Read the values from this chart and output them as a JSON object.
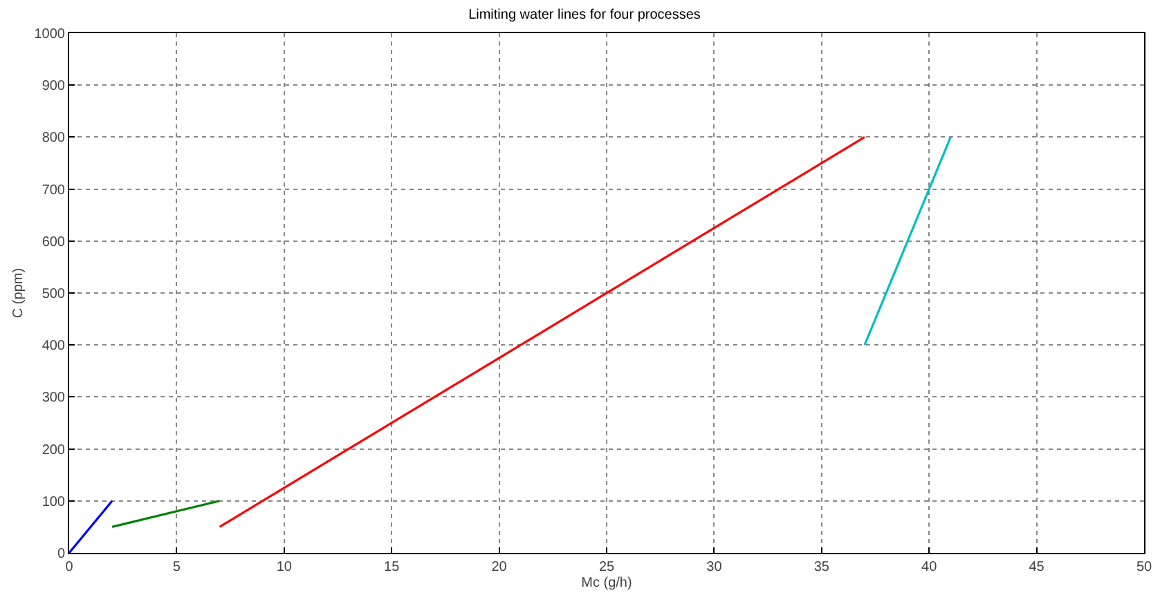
{
  "chart_data": {
    "type": "line",
    "title": "Limiting water lines for four processes",
    "xlabel": "Mc (g/h)",
    "ylabel": "C (ppm)",
    "series": [
      {
        "color": "#0000ff",
        "x": [
          0,
          2
        ],
        "values": [
          0,
          100
        ]
      },
      {
        "color": "#008000",
        "x": [
          2,
          7
        ],
        "values": [
          50,
          100
        ]
      },
      {
        "color": "#ff0000",
        "x": [
          7,
          37
        ],
        "values": [
          50,
          800
        ]
      },
      {
        "color": "#00bfbf",
        "x": [
          37,
          41
        ],
        "values": [
          400,
          800
        ]
      }
    ],
    "xlim": [
      0,
      50
    ],
    "xticks": [
      0,
      5,
      10,
      15,
      20,
      25,
      30,
      35,
      40,
      45,
      50
    ],
    "ylim": [
      0,
      1000
    ],
    "yticks": [
      0,
      100,
      200,
      300,
      400,
      500,
      600,
      700,
      800,
      900,
      1000
    ],
    "grid": true,
    "marker": "none",
    "line_style": "solid"
  }
}
